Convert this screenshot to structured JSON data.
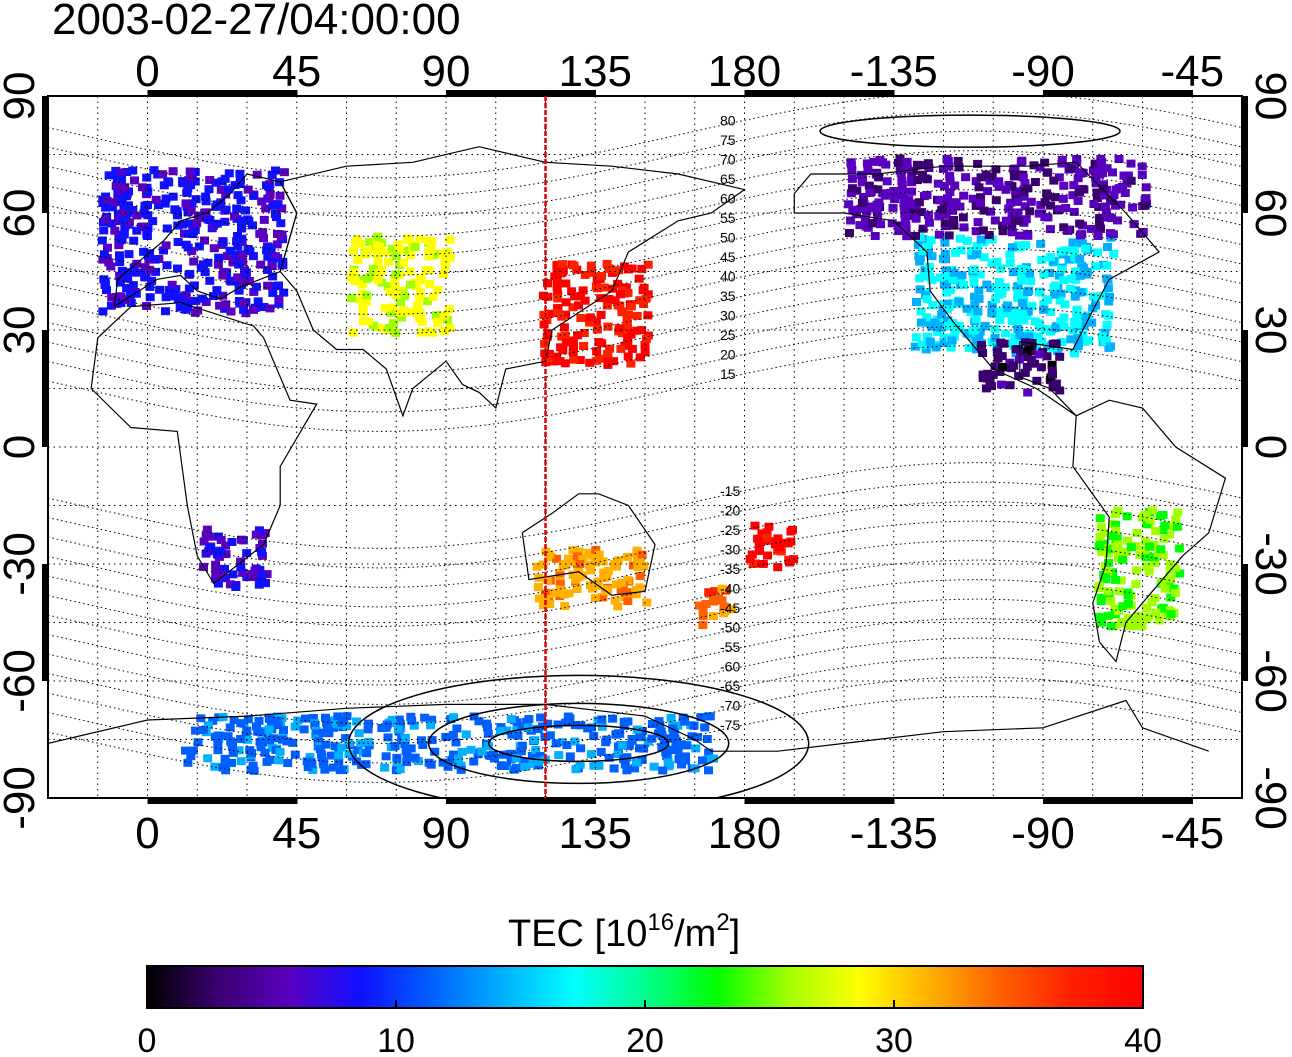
{
  "title": "2003-02-27/04:00:00",
  "map": {
    "top_tick_labels": [
      "0",
      "45",
      "90",
      "135",
      "180",
      "-135",
      "-90",
      "-45"
    ],
    "bottom_tick_labels": [
      "0",
      "45",
      "90",
      "135",
      "180",
      "-135",
      "-90",
      "-45"
    ],
    "left_tick_labels": [
      "90",
      "60",
      "30",
      "0",
      "-30",
      "-60",
      "-90"
    ],
    "right_tick_labels": [
      "90",
      "60",
      "30",
      "0",
      "-30",
      "-60",
      "-90"
    ],
    "meridian_marker_longitude": 120,
    "magnetic_latitude_labels": [
      "80",
      "75",
      "70",
      "65",
      "60",
      "55",
      "50",
      "45",
      "40",
      "35",
      "30",
      "25",
      "20",
      "15",
      "-15",
      "-20",
      "-25",
      "-30",
      "-35",
      "-40",
      "-45",
      "-50",
      "-55",
      "-60",
      "-65",
      "-70",
      "-75"
    ],
    "tec_regions": [
      {
        "lon_min": -15,
        "lon_max": 40,
        "lat_min": 35,
        "lat_max": 72,
        "tec": 8
      },
      {
        "lon_min": 60,
        "lon_max": 90,
        "lat_min": 30,
        "lat_max": 55,
        "tec": 28
      },
      {
        "lon_min": 118,
        "lon_max": 150,
        "lat_min": 22,
        "lat_max": 48,
        "tec": 39
      },
      {
        "lon_min": -130,
        "lon_max": -70,
        "lat_min": 25,
        "lat_max": 55,
        "tec": 16
      },
      {
        "lon_min": -150,
        "lon_max": -60,
        "lat_min": 55,
        "lat_max": 75,
        "tec": 5
      },
      {
        "lon_min": -110,
        "lon_max": -85,
        "lat_min": 15,
        "lat_max": 28,
        "tec": 3
      },
      {
        "lon_min": 165,
        "lon_max": 175,
        "lat_min": -45,
        "lat_max": -35,
        "tec": 34
      },
      {
        "lon_min": 180,
        "lon_max": -165,
        "lat_min": -30,
        "lat_max": -18,
        "tec": 40
      },
      {
        "lon_min": 15,
        "lon_max": 35,
        "lat_min": -35,
        "lat_max": -20,
        "tec": 7
      },
      {
        "lon_min": -75,
        "lon_max": -50,
        "lat_min": -45,
        "lat_max": -15,
        "tec": 25
      },
      {
        "lon_min": 115,
        "lon_max": 150,
        "lat_min": -40,
        "lat_max": -25,
        "tec": 32
      },
      {
        "lon_min": 10,
        "lon_max": 170,
        "lat_min": -82,
        "lat_max": -68,
        "tec": 12
      }
    ]
  },
  "colorbar": {
    "label_main": "TEC  [10",
    "label_exp1": "16",
    "label_mid": "/m",
    "label_exp2": "2",
    "label_end": "]",
    "min": 0,
    "max": 40,
    "tick_labels": [
      "0",
      "10",
      "20",
      "30",
      "40"
    ],
    "stops": [
      "#000000",
      "#3a0070",
      "#5a00c0",
      "#1010ff",
      "#0060ff",
      "#00b0ff",
      "#00ffff",
      "#00ff90",
      "#00ff00",
      "#a0ff00",
      "#ffff00",
      "#ffb000",
      "#ff6000",
      "#ff2000",
      "#ff0000"
    ]
  }
}
